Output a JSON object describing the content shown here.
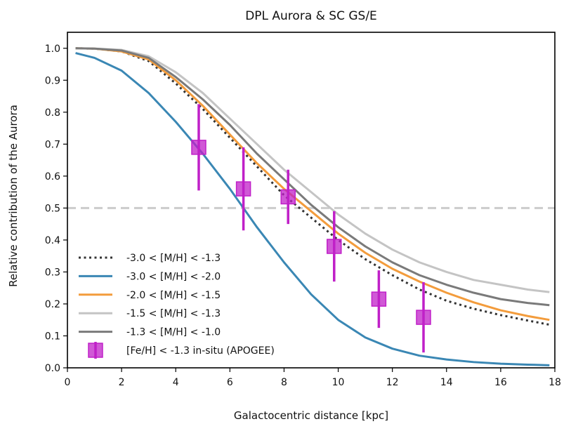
{
  "chart_data": {
    "type": "line",
    "title": "DPL Aurora & SC GS/E",
    "xlabel": "Galactocentric distance [kpc]",
    "ylabel": "Relative contribution of the Aurora",
    "xlim": [
      0,
      18
    ],
    "ylim": [
      0,
      1.05
    ],
    "xticks": [
      0,
      2,
      4,
      6,
      8,
      10,
      12,
      14,
      16,
      18
    ],
    "xtick_labels": [
      "0",
      "2",
      "4",
      "6",
      "8",
      "10",
      "12",
      "14",
      "16",
      "18"
    ],
    "yticks": [
      0.0,
      0.1,
      0.2,
      0.3,
      0.4,
      0.5,
      0.6,
      0.7,
      0.8,
      0.9,
      1.0
    ],
    "ytick_labels": [
      "0.0",
      "0.1",
      "0.2",
      "0.3",
      "0.4",
      "0.5",
      "0.6",
      "0.7",
      "0.8",
      "0.9",
      "1.0"
    ],
    "grid": false,
    "legend_position": "lower-left",
    "reference_line": {
      "y": 0.5,
      "color": "#cccccc",
      "style": "dashed"
    },
    "series": [
      {
        "name": "-3.0 < [M/H] < -1.3",
        "color": "#333333",
        "style": "dotted",
        "x": [
          0.3,
          1,
          2,
          3,
          4,
          5,
          6,
          7,
          8,
          9,
          10,
          11,
          12,
          13,
          14,
          15,
          16,
          17,
          17.8
        ],
        "y": [
          1.0,
          0.999,
          0.99,
          0.96,
          0.89,
          0.81,
          0.72,
          0.63,
          0.54,
          0.47,
          0.4,
          0.34,
          0.29,
          0.245,
          0.21,
          0.185,
          0.165,
          0.148,
          0.135
        ]
      },
      {
        "name": "-3.0 < [M/H] < -2.0",
        "color": "#3a87b4",
        "style": "solid",
        "x": [
          0.3,
          1,
          2,
          3,
          4,
          5,
          6,
          7,
          8,
          9,
          10,
          11,
          12,
          13,
          14,
          15,
          16,
          17,
          17.8
        ],
        "y": [
          0.985,
          0.97,
          0.93,
          0.86,
          0.77,
          0.67,
          0.56,
          0.44,
          0.33,
          0.23,
          0.15,
          0.095,
          0.06,
          0.038,
          0.026,
          0.018,
          0.013,
          0.01,
          0.008
        ]
      },
      {
        "name": "-2.0 < [M/H] < -1.5",
        "color": "#f39c3c",
        "style": "solid",
        "x": [
          0.3,
          1,
          2,
          3,
          4,
          5,
          6,
          7,
          8,
          9,
          10,
          11,
          12,
          13,
          14,
          15,
          16,
          17,
          17.8
        ],
        "y": [
          1.0,
          0.999,
          0.99,
          0.965,
          0.9,
          0.82,
          0.73,
          0.64,
          0.56,
          0.49,
          0.42,
          0.36,
          0.31,
          0.27,
          0.235,
          0.205,
          0.18,
          0.162,
          0.15
        ]
      },
      {
        "name": "-1.5 < [M/H] < -1.3",
        "color": "#c4c4c4",
        "style": "solid",
        "x": [
          0.3,
          1,
          2,
          3,
          4,
          5,
          6,
          7,
          8,
          9,
          10,
          11,
          12,
          13,
          14,
          15,
          16,
          17,
          17.8
        ],
        "y": [
          1.0,
          0.999,
          0.995,
          0.975,
          0.925,
          0.86,
          0.78,
          0.7,
          0.62,
          0.55,
          0.48,
          0.42,
          0.37,
          0.33,
          0.3,
          0.275,
          0.26,
          0.245,
          0.237
        ]
      },
      {
        "name": "-1.3 < [M/H] < -1.0",
        "color": "#7a7a7a",
        "style": "solid",
        "x": [
          0.3,
          1,
          2,
          3,
          4,
          5,
          6,
          7,
          8,
          9,
          10,
          11,
          12,
          13,
          14,
          15,
          16,
          17,
          17.8
        ],
        "y": [
          1.0,
          0.999,
          0.993,
          0.97,
          0.91,
          0.84,
          0.76,
          0.67,
          0.59,
          0.51,
          0.44,
          0.38,
          0.33,
          0.29,
          0.26,
          0.235,
          0.215,
          0.203,
          0.196
        ]
      }
    ],
    "points": {
      "name": "[Fe/H] < -1.3 in-situ (APOGEE)",
      "color": "#c020c8",
      "x": [
        4.85,
        6.5,
        8.15,
        9.85,
        11.5,
        13.15
      ],
      "y": [
        0.69,
        0.56,
        0.535,
        0.38,
        0.215,
        0.158
      ],
      "err": [
        0.135,
        0.13,
        0.085,
        0.11,
        0.09,
        0.11
      ]
    }
  }
}
